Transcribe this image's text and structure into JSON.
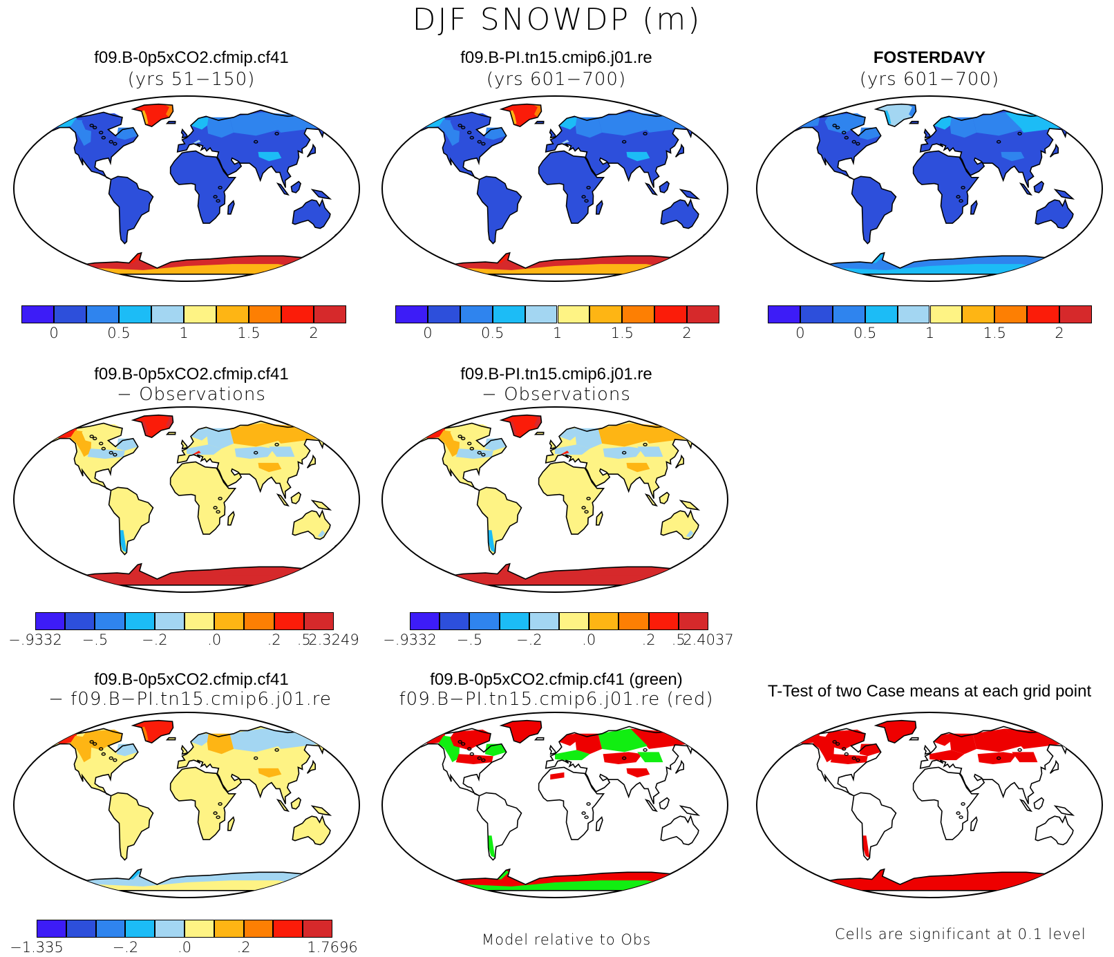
{
  "title": "DJF SNOWDP (m)",
  "colors": {
    "scale": [
      "#3d1cf7",
      "#2d4fdb",
      "#2f84ee",
      "#1cbcf6",
      "#a3d6f2",
      "#fef384",
      "#feb514",
      "#fd7f03",
      "#fb1c09",
      "#d6292b"
    ],
    "red": "#ee0000",
    "green": "#11ee11",
    "outline": "#000000"
  },
  "panels": [
    {
      "id": "p1",
      "title": "f09.B-0p5xCO2.cfmip.cf41",
      "subtitle": "(yrs 51−150)",
      "style": "model",
      "colorbar": {
        "labels": [
          "0",
          "0.5",
          "1",
          "1.5",
          "2"
        ]
      }
    },
    {
      "id": "p2",
      "title": "f09.B-PI.tn15.cmip6.j01.re",
      "subtitle": "(yrs 601−700)",
      "style": "model",
      "colorbar": {
        "labels": [
          "0",
          "0.5",
          "1",
          "1.5",
          "2"
        ]
      }
    },
    {
      "id": "p3",
      "title": "FOSTERDAVY",
      "subtitle": "(yrs 601−700)",
      "style": "obs",
      "colorbar": {
        "labels": [
          "0",
          "0.5",
          "1",
          "1.5",
          "2"
        ]
      }
    },
    {
      "id": "p4",
      "title": "f09.B-0p5xCO2.cfmip.cf41",
      "subtitle": "− Observations",
      "style": "diff",
      "colorbar": {
        "labels": [
          "−.9332",
          "−.5",
          "−.2",
          ".0",
          ".2",
          ".5",
          "2.3249"
        ]
      }
    },
    {
      "id": "p5",
      "title": "f09.B-PI.tn15.cmip6.j01.re",
      "subtitle": "− Observations",
      "style": "diff",
      "colorbar": {
        "labels": [
          "−.9332",
          "−.5",
          "−.2",
          ".0",
          ".2",
          ".5",
          "2.4037"
        ]
      }
    },
    {
      "id": "p6",
      "title": "f09.B-0p5xCO2.cfmip.cf41",
      "subtitle": "− f09.B−PI.tn15.cmip6.j01.re",
      "style": "casediff",
      "colorbar": {
        "labels": [
          "−1.335",
          "−.2",
          ".0",
          ".2",
          "1.7696"
        ]
      }
    },
    {
      "id": "p7",
      "title": "f09.B-0p5xCO2.cfmip.cf41 (green)",
      "subtitle": "f09.B−PI.tn15.cmip6.j01.re (red)",
      "style": "compare",
      "footer": "Model relative to Obs"
    },
    {
      "id": "p8",
      "title": "T-Test of two Case means at each grid point",
      "subtitle": "",
      "style": "ttest",
      "footer": "Cells are significant at 0.1 level"
    }
  ]
}
